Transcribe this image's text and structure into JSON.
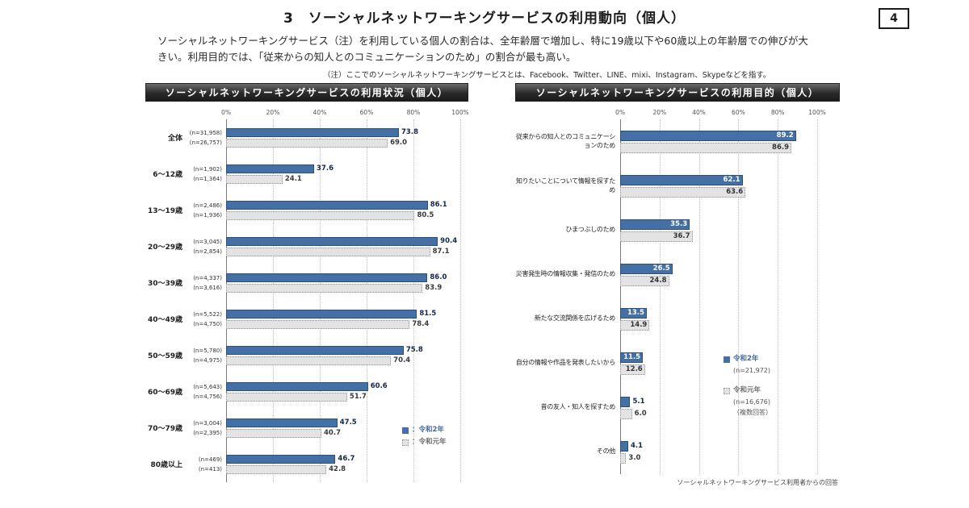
{
  "page": {
    "title": "3　ソーシャルネットワーキングサービスの利用動向（個人）",
    "page_number": "4",
    "intro": "ソーシャルネットワーキングサービス（注）を利用している個人の割合は、全年齢層で増加し、特に19歳以下や60歳以上の年齢層での伸びが大きい。利用目的では、「従来からの知人とのコミュニケーションのため」の割合が最も高い。",
    "note": "（注）ここでのソーシャルネットワーキングサービスとは、Facebook、Twitter、LINE、mixi、Instagram、Skypeなどを指す。",
    "footnote": "ソーシャルネットワーキングサービス利用者からの回答"
  },
  "colors": {
    "reiwa2": "#4470a8",
    "reiwa1": "#e3e3e3"
  },
  "chart_data": [
    {
      "type": "bar",
      "orientation": "horizontal",
      "title": "ソーシャルネットワーキングサービスの利用状況（個人）",
      "x_ticks": [
        "0%",
        "20%",
        "40%",
        "60%",
        "80%",
        "100%"
      ],
      "xlim": [
        0,
        100
      ],
      "grid": true,
      "categories": [
        "全体",
        "6～12歳",
        "13～19歳",
        "20～29歳",
        "30～39歳",
        "40～49歳",
        "50～59歳",
        "60～69歳",
        "70～79歳",
        "80歳以上"
      ],
      "sample_sizes": {
        "reiwa2": [
          "(n=31,958)",
          "(n=1,902)",
          "(n=2,486)",
          "(n=3,045)",
          "(n=4,337)",
          "(n=5,522)",
          "(n=5,780)",
          "(n=5,643)",
          "(n=3,004)",
          "(n=469)"
        ],
        "reiwa1": [
          "(n=26,757)",
          "(n=1,364)",
          "(n=1,936)",
          "(n=2,854)",
          "(n=3,616)",
          "(n=4,750)",
          "(n=4,975)",
          "(n=4,756)",
          "(n=2,395)",
          "(n=413)"
        ]
      },
      "series": [
        {
          "name": "令和2年",
          "values": [
            73.8,
            37.6,
            86.1,
            90.4,
            86.0,
            81.5,
            75.8,
            60.6,
            47.5,
            46.7
          ]
        },
        {
          "name": "令和元年",
          "values": [
            69.0,
            24.1,
            80.5,
            87.1,
            83.9,
            78.4,
            70.4,
            51.7,
            40.7,
            42.8
          ]
        }
      ],
      "legend": [
        {
          "label": "：令和2年"
        },
        {
          "label": "：令和元年"
        }
      ]
    },
    {
      "type": "bar",
      "orientation": "horizontal",
      "title": "ソーシャルネットワーキングサービスの利用目的（個人）",
      "x_ticks": [
        "0%",
        "20%",
        "40%",
        "60%",
        "80%",
        "100%"
      ],
      "xlim": [
        0,
        100
      ],
      "grid": true,
      "categories": [
        "従来からの知人とのコミュニケーションのため",
        "知りたいことについて情報を探すため",
        "ひまつぶしのため",
        "災害発生時の情報収集・発信のため",
        "新たな交流関係を広げるため",
        "自分の情報や作品を発表したいから",
        "昔の友人・知人を探すため",
        "その他"
      ],
      "series": [
        {
          "name": "令和2年",
          "values": [
            89.2,
            62.1,
            35.3,
            26.5,
            13.5,
            11.5,
            5.1,
            4.1
          ]
        },
        {
          "name": "令和元年",
          "values": [
            86.9,
            63.6,
            36.7,
            24.8,
            14.9,
            12.6,
            6.0,
            3.0
          ]
        }
      ],
      "legend": [
        {
          "label": "令和2年",
          "n": "(n=21,972)"
        },
        {
          "label": "令和元年",
          "n": "(n=16,676)",
          "note": "（複数回答）"
        }
      ]
    }
  ]
}
